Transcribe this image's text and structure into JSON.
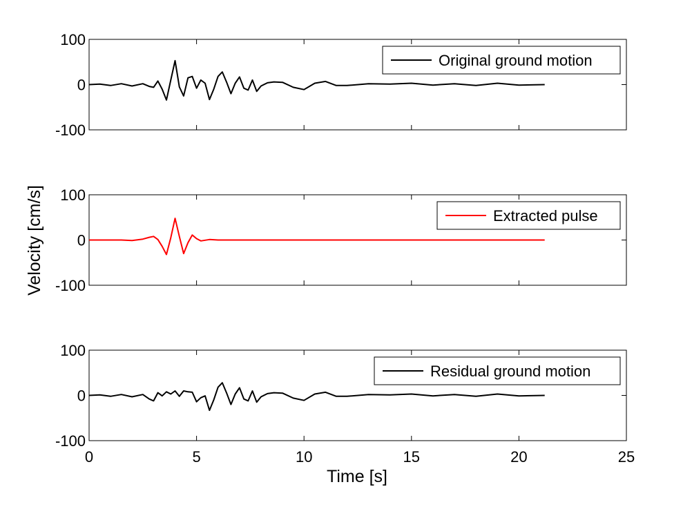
{
  "chart_data": [
    {
      "type": "line",
      "xlim": [
        0,
        25
      ],
      "ylim": [
        -100,
        100
      ],
      "x_ticks": [
        0,
        5,
        10,
        15,
        20,
        25
      ],
      "y_ticks": [
        -100,
        0,
        100
      ],
      "show_x_tick_labels": false,
      "legend_position": "top-right",
      "series": [
        {
          "name": "Original ground motion",
          "color": "#000000",
          "x": [
            0,
            0.5,
            1.0,
            1.5,
            2.0,
            2.5,
            2.8,
            3.0,
            3.2,
            3.4,
            3.6,
            3.8,
            4.0,
            4.2,
            4.4,
            4.6,
            4.8,
            5.0,
            5.2,
            5.4,
            5.6,
            5.8,
            6.0,
            6.2,
            6.4,
            6.6,
            6.8,
            7.0,
            7.2,
            7.4,
            7.6,
            7.8,
            8.0,
            8.3,
            8.6,
            9.0,
            9.5,
            10.0,
            10.5,
            11.0,
            11.5,
            12.0,
            13.0,
            14.0,
            15.0,
            16.0,
            17.0,
            18.0,
            19.0,
            20.0,
            21.2
          ],
          "y": [
            0,
            1,
            -2,
            2,
            -3,
            2,
            -4,
            -6,
            8,
            -10,
            -34,
            10,
            53,
            -5,
            -25,
            15,
            18,
            -8,
            10,
            3,
            -33,
            -10,
            18,
            28,
            5,
            -20,
            3,
            17,
            -8,
            -12,
            10,
            -15,
            -3,
            4,
            6,
            5,
            -6,
            -11,
            3,
            7,
            -2,
            -2,
            2,
            1,
            3,
            -1,
            2,
            -2,
            3,
            -1,
            0
          ]
        }
      ]
    },
    {
      "type": "line",
      "xlim": [
        0,
        25
      ],
      "ylim": [
        -100,
        100
      ],
      "x_ticks": [
        0,
        5,
        10,
        15,
        20,
        25
      ],
      "y_ticks": [
        -100,
        0,
        100
      ],
      "show_x_tick_labels": false,
      "ylabel": "Velocity [cm/s]",
      "legend_position": "top-right",
      "series": [
        {
          "name": "Extracted pulse",
          "color": "#ff0000",
          "x": [
            0,
            1.5,
            2.0,
            2.5,
            2.8,
            3.0,
            3.2,
            3.4,
            3.6,
            3.8,
            4.0,
            4.2,
            4.4,
            4.6,
            4.8,
            5.0,
            5.2,
            5.6,
            6.0,
            21.2
          ],
          "y": [
            0,
            0,
            -1,
            2,
            6,
            8,
            1,
            -14,
            -32,
            5,
            48,
            8,
            -30,
            -6,
            11,
            3,
            -2,
            1,
            0,
            0
          ]
        }
      ]
    },
    {
      "type": "line",
      "xlim": [
        0,
        25
      ],
      "ylim": [
        -100,
        100
      ],
      "x_ticks": [
        0,
        5,
        10,
        15,
        20,
        25
      ],
      "y_ticks": [
        -100,
        0,
        100
      ],
      "show_x_tick_labels": true,
      "xlabel": "Time [s]",
      "legend_position": "top-right",
      "series": [
        {
          "name": "Residual ground motion",
          "color": "#000000",
          "x": [
            0,
            0.5,
            1.0,
            1.5,
            2.0,
            2.5,
            2.8,
            3.0,
            3.2,
            3.4,
            3.6,
            3.8,
            4.0,
            4.2,
            4.4,
            4.6,
            4.8,
            5.0,
            5.2,
            5.4,
            5.6,
            5.8,
            6.0,
            6.2,
            6.4,
            6.6,
            6.8,
            7.0,
            7.2,
            7.4,
            7.6,
            7.8,
            8.0,
            8.3,
            8.6,
            9.0,
            9.5,
            10.0,
            10.5,
            11.0,
            11.5,
            12.0,
            13.0,
            14.0,
            15.0,
            16.0,
            17.0,
            18.0,
            19.0,
            20.0,
            21.2
          ],
          "y": [
            0,
            1,
            -2,
            2,
            -3,
            2,
            -8,
            -12,
            6,
            -1,
            8,
            3,
            10,
            -2,
            10,
            8,
            7,
            -14,
            -5,
            -1,
            -33,
            -10,
            18,
            28,
            5,
            -20,
            3,
            17,
            -8,
            -12,
            10,
            -15,
            -3,
            4,
            6,
            5,
            -6,
            -11,
            3,
            7,
            -2,
            -2,
            2,
            1,
            3,
            -1,
            2,
            -2,
            3,
            -1,
            0
          ]
        }
      ]
    }
  ]
}
